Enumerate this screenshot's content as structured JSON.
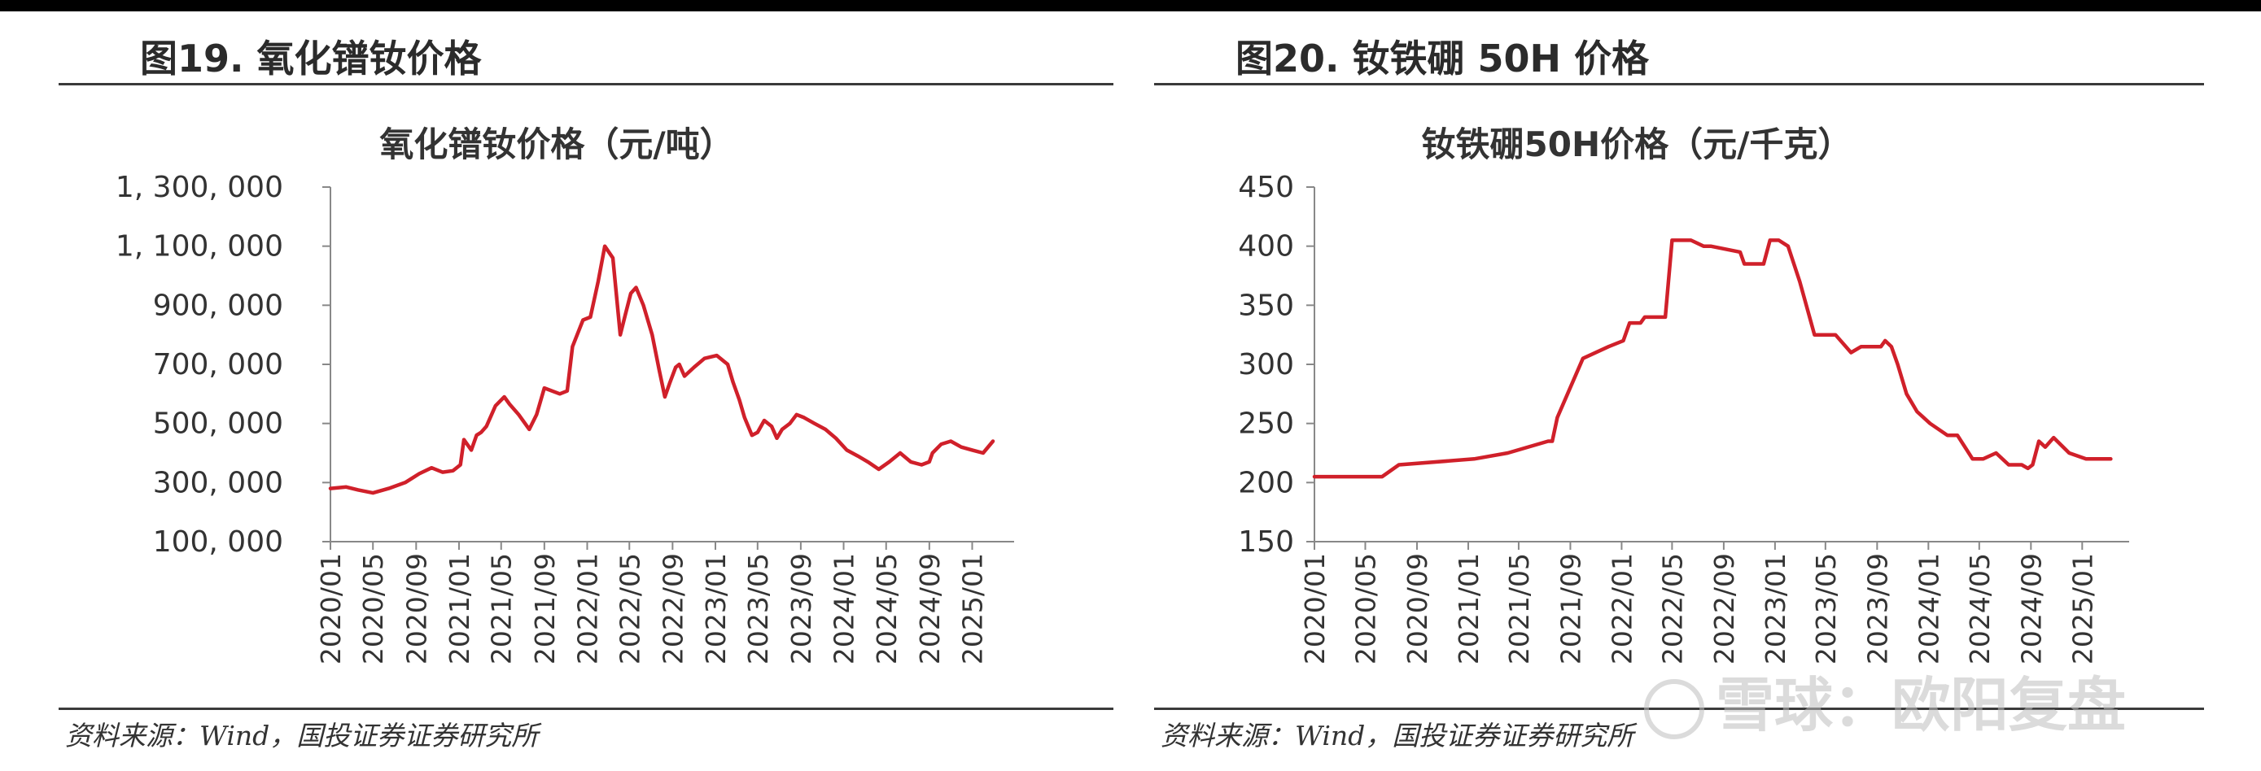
{
  "figures": [
    {
      "fig_title": "图19. 氧化镨钕价格",
      "source": "资料来源：Wind，国投证券证券研究所"
    },
    {
      "fig_title": "图20. 钕铁硼 50H 价格",
      "source": "资料来源：Wind，国投证券证券研究所"
    }
  ],
  "watermark": "雪球：欧阳复盘",
  "colors": {
    "line": "#d0202a",
    "axis": "#888888",
    "rule": "#3a3a3a"
  },
  "chart_data": [
    {
      "type": "line",
      "title": "氧化镨钕价格（元/吨）",
      "ylim": [
        100000,
        1300000
      ],
      "yticks": [
        100000,
        300000,
        500000,
        700000,
        900000,
        1100000,
        1300000
      ],
      "ytick_labels": [
        "100, 000",
        "300, 000",
        "500, 000",
        "700, 000",
        "900, 000",
        "1, 100, 000",
        "1, 300, 000"
      ],
      "xlim": [
        "2020-01-01",
        "2025-03-15"
      ],
      "xtick_labels": [
        "2020/01",
        "2020/05",
        "2020/09",
        "2021/01",
        "2021/05",
        "2021/09",
        "2022/01",
        "2022/05",
        "2022/09",
        "2023/01",
        "2023/05",
        "2023/09",
        "2024/01",
        "2024/05",
        "2024/09",
        "2025/01"
      ],
      "grid": false,
      "series": [
        {
          "x": [
            "2020-01-01",
            "2020-02-15",
            "2020-03-20",
            "2020-05-01",
            "2020-06-15",
            "2020-08-01",
            "2020-09-10",
            "2020-10-15",
            "2020-11-15",
            "2020-12-15",
            "2021-01-05",
            "2021-01-15",
            "2021-02-05",
            "2021-02-20",
            "2021-03-05",
            "2021-03-20",
            "2021-04-15",
            "2021-05-10",
            "2021-05-25",
            "2021-06-20",
            "2021-07-20",
            "2021-08-10",
            "2021-09-01",
            "2021-10-15",
            "2021-11-05",
            "2021-11-20",
            "2021-12-20",
            "2022-01-10",
            "2022-02-01",
            "2022-02-20",
            "2022-03-15",
            "2022-04-05",
            "2022-04-20",
            "2022-05-05",
            "2022-05-20",
            "2022-06-10",
            "2022-07-05",
            "2022-07-25",
            "2022-08-10",
            "2022-08-25",
            "2022-09-10",
            "2022-09-20",
            "2022-10-05",
            "2022-11-01",
            "2022-12-01",
            "2023-01-05",
            "2023-02-05",
            "2023-02-20",
            "2023-03-10",
            "2023-03-25",
            "2023-04-15",
            "2023-05-01",
            "2023-05-20",
            "2023-06-10",
            "2023-06-25",
            "2023-07-10",
            "2023-08-01",
            "2023-08-20",
            "2023-09-10",
            "2023-10-10",
            "2023-11-10",
            "2023-12-10",
            "2024-01-10",
            "2024-02-10",
            "2024-03-10",
            "2024-04-10",
            "2024-05-10",
            "2024-06-10",
            "2024-07-10",
            "2024-08-10",
            "2024-09-01",
            "2024-09-10",
            "2024-10-05",
            "2024-11-01",
            "2024-12-01",
            "2025-01-01",
            "2025-02-01",
            "2025-03-01"
          ],
          "values": [
            280000,
            285000,
            275000,
            265000,
            280000,
            300000,
            330000,
            350000,
            335000,
            340000,
            360000,
            445000,
            410000,
            460000,
            470000,
            490000,
            560000,
            590000,
            565000,
            530000,
            480000,
            530000,
            620000,
            600000,
            610000,
            760000,
            850000,
            860000,
            980000,
            1100000,
            1060000,
            800000,
            870000,
            940000,
            960000,
            900000,
            800000,
            680000,
            590000,
            640000,
            690000,
            700000,
            660000,
            690000,
            720000,
            730000,
            700000,
            640000,
            580000,
            520000,
            460000,
            470000,
            510000,
            490000,
            450000,
            480000,
            500000,
            530000,
            520000,
            500000,
            480000,
            450000,
            410000,
            390000,
            370000,
            345000,
            370000,
            400000,
            370000,
            360000,
            370000,
            400000,
            430000,
            440000,
            420000,
            410000,
            400000,
            440000
          ]
        }
      ]
    },
    {
      "type": "line",
      "title": "钕铁硼50H价格（元/千克）",
      "ylim": [
        150,
        450
      ],
      "yticks": [
        150,
        200,
        250,
        300,
        350,
        400,
        450
      ],
      "ytick_labels": [
        "150",
        "200",
        "250",
        "300",
        "350",
        "400",
        "450"
      ],
      "xlim": [
        "2020-01-01",
        "2025-03-15"
      ],
      "xtick_labels": [
        "2020/01",
        "2020/05",
        "2020/09",
        "2021/01",
        "2021/05",
        "2021/09",
        "2022/01",
        "2022/05",
        "2022/09",
        "2023/01",
        "2023/05",
        "2023/09",
        "2024/01",
        "2024/05",
        "2024/09",
        "2025/01"
      ],
      "grid": false,
      "series": [
        {
          "x": [
            "2020-01-01",
            "2020-06-10",
            "2020-07-20",
            "2021-01-15",
            "2021-04-05",
            "2021-07-10",
            "2021-07-20",
            "2021-08-01",
            "2021-10-01",
            "2021-12-01",
            "2022-01-05",
            "2022-01-20",
            "2022-02-15",
            "2022-02-25",
            "2022-04-15",
            "2022-05-01",
            "2022-06-15",
            "2022-07-15",
            "2022-08-01",
            "2022-10-10",
            "2022-10-20",
            "2022-12-05",
            "2022-12-20",
            "2023-01-10",
            "2023-02-01",
            "2023-03-01",
            "2023-04-05",
            "2023-05-25",
            "2023-07-01",
            "2023-07-25",
            "2023-09-10",
            "2023-09-20",
            "2023-10-05",
            "2023-10-20",
            "2023-11-10",
            "2023-12-05",
            "2024-01-05",
            "2024-02-15",
            "2024-03-10",
            "2024-04-15",
            "2024-05-10",
            "2024-06-10",
            "2024-07-10",
            "2024-08-10",
            "2024-08-25",
            "2024-09-05",
            "2024-09-20",
            "2024-10-05",
            "2024-10-25",
            "2024-12-01",
            "2025-01-10",
            "2025-03-10"
          ],
          "values": [
            205,
            205,
            215,
            220,
            225,
            235,
            235,
            255,
            305,
            315,
            320,
            335,
            335,
            340,
            340,
            405,
            405,
            400,
            400,
            395,
            385,
            385,
            405,
            405,
            400,
            370,
            325,
            325,
            310,
            315,
            315,
            320,
            315,
            300,
            275,
            260,
            250,
            240,
            240,
            220,
            220,
            225,
            215,
            215,
            212,
            215,
            235,
            230,
            238,
            225,
            220,
            220
          ]
        }
      ]
    }
  ]
}
